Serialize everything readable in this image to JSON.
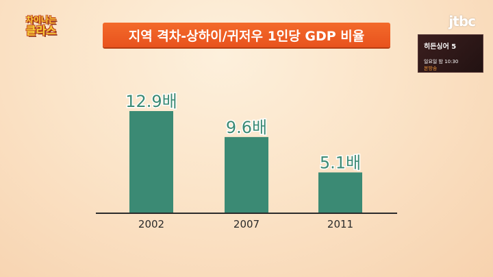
{
  "logo": {
    "line1": "차이나는",
    "line2": "클라스"
  },
  "broadcaster": "jtbc",
  "promo": {
    "title": "히든싱어 5",
    "time": "일요일 밤 10:30",
    "air": "본방송"
  },
  "colors": {
    "bar": "#3b8a74",
    "banner": "#ef5f24",
    "axis": "#2a2a2a"
  },
  "chart_data": {
    "type": "bar",
    "title": "지역 격차-상하이/귀저우 1인당 GDP 비율",
    "categories": [
      "2002",
      "2007",
      "2011"
    ],
    "values": [
      12.9,
      9.6,
      5.1
    ],
    "value_labels": [
      "12.9배",
      "9.6배",
      "5.1배"
    ],
    "ylim": [
      0,
      15
    ],
    "grid": false,
    "xlabel": "",
    "ylabel": ""
  }
}
